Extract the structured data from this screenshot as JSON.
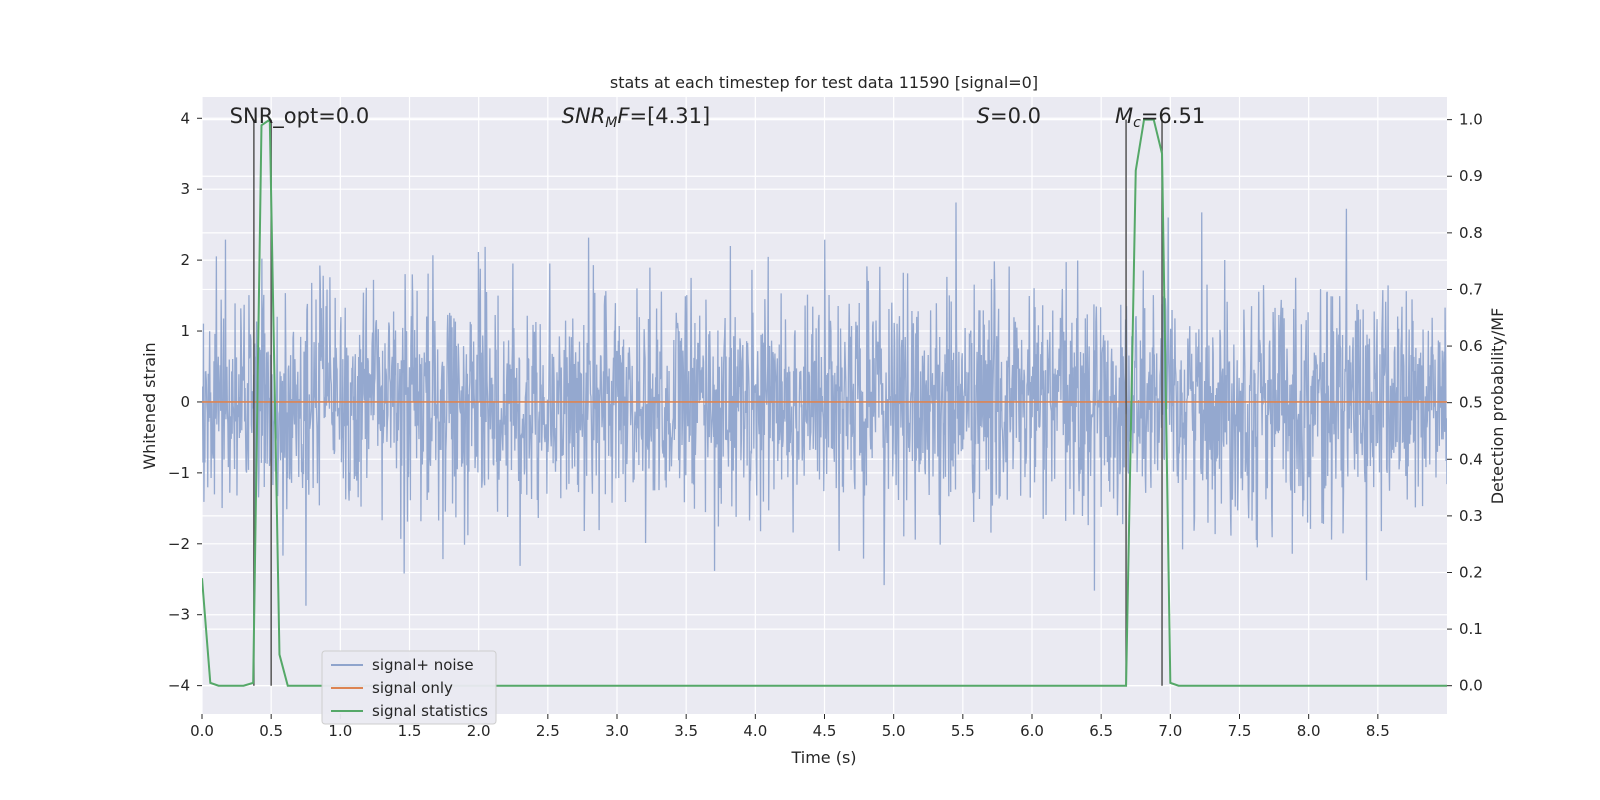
{
  "chart_data": {
    "type": "line",
    "title": "stats at each timestep for test data 11590 [signal=0]",
    "xlabel": "Time (s)",
    "ylabel_left": "Whitened strain",
    "ylabel_right": "Detection probability/MF",
    "xlim": [
      0.0,
      9.0
    ],
    "ylim_left": [
      -4.4,
      4.3
    ],
    "ylim_right": [
      -0.05,
      1.04
    ],
    "x_ticks": [
      "0.0",
      "0.5",
      "1.0",
      "1.5",
      "2.0",
      "2.5",
      "3.0",
      "3.5",
      "4.0",
      "4.5",
      "5.0",
      "5.5",
      "6.0",
      "6.5",
      "7.0",
      "7.5",
      "8.0",
      "8.5"
    ],
    "x_tick_values": [
      0.0,
      0.5,
      1.0,
      1.5,
      2.0,
      2.5,
      3.0,
      3.5,
      4.0,
      4.5,
      5.0,
      5.5,
      6.0,
      6.5,
      7.0,
      7.5,
      8.0,
      8.5
    ],
    "y_left_ticks": [
      "4",
      "3",
      "2",
      "1",
      "0",
      "−1",
      "−2",
      "−3",
      "−4"
    ],
    "y_left_tick_values": [
      4,
      3,
      2,
      1,
      0,
      -1,
      -2,
      -3,
      -4
    ],
    "y_right_ticks": [
      "1.0",
      "0.9",
      "0.8",
      "0.7",
      "0.6",
      "0.5",
      "0.4",
      "0.3",
      "0.2",
      "0.1",
      "0.0"
    ],
    "y_right_tick_values": [
      1.0,
      0.9,
      0.8,
      0.7,
      0.6,
      0.5,
      0.4,
      0.3,
      0.2,
      0.1,
      0.0
    ],
    "grid": true,
    "legend_position": "lower-left",
    "annotations": [
      {
        "text_parts": [
          {
            "t": "SNR_opt=0.0",
            "i": false
          }
        ],
        "x_data": 0.2
      },
      {
        "text_parts": [
          {
            "t": "SNR",
            "i": true
          },
          {
            "t": "M",
            "i": true,
            "sub": true
          },
          {
            "t": "F",
            "i": true
          },
          {
            "t": "=[4.31]",
            "i": false
          }
        ],
        "x_data": 2.6
      },
      {
        "text_parts": [
          {
            "t": "S",
            "i": true
          },
          {
            "t": "=0.0",
            "i": false
          }
        ],
        "x_data": 5.6
      },
      {
        "text_parts": [
          {
            "t": "M",
            "i": true
          },
          {
            "t": "c",
            "i": true,
            "sub": true
          },
          {
            "t": "=6.51",
            "i": false
          }
        ],
        "x_data": 6.6
      }
    ],
    "vertical_lines": [
      0.375,
      0.5,
      6.68,
      6.94
    ],
    "series": [
      {
        "name": "signal+ noise",
        "color": "#8fa4cc",
        "axis": "left",
        "kind": "noise",
        "x_range": [
          0.0,
          9.0
        ],
        "approx_std": 0.8,
        "approx_min": -4.0,
        "approx_max": 3.9
      },
      {
        "name": "signal only",
        "color": "#dd8452",
        "axis": "left",
        "x": [
          0.0,
          9.0
        ],
        "y": [
          0.0,
          0.0
        ]
      },
      {
        "name": "signal statistics",
        "color": "#55a868",
        "axis": "right",
        "x": [
          0.0,
          0.06,
          0.12,
          0.3,
          0.37,
          0.43,
          0.49,
          0.56,
          0.62,
          0.75,
          6.0,
          6.68,
          6.75,
          6.81,
          6.88,
          6.94,
          7.0,
          7.06,
          9.0
        ],
        "y": [
          0.19,
          0.005,
          0.0,
          0.0,
          0.005,
          0.99,
          1.0,
          0.055,
          0.0,
          0.0,
          0.0,
          0.0,
          0.91,
          1.0,
          1.0,
          0.94,
          0.005,
          0.0,
          0.0
        ]
      }
    ]
  }
}
